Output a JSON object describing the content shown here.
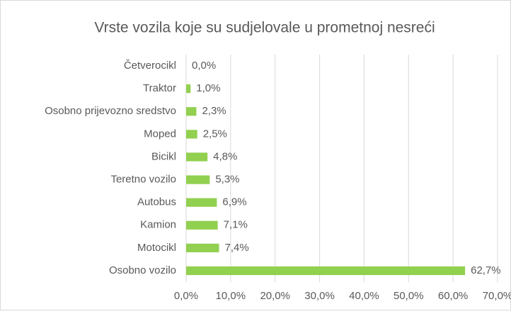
{
  "chart_data": {
    "type": "bar",
    "orientation": "horizontal",
    "title": "Vrste vozila koje su sudjelovale u prometnoj nesreći",
    "categories": [
      "Četverocikl",
      "Traktor",
      "Osobno prijevozno sredstvo",
      "Moped",
      "Bicikl",
      "Teretno vozilo",
      "Autobus",
      "Kamion",
      "Motocikl",
      "Osobno vozilo"
    ],
    "values": [
      0.0,
      1.0,
      2.3,
      2.5,
      4.8,
      5.3,
      6.9,
      7.1,
      7.4,
      62.7
    ],
    "value_labels": [
      "0,0%",
      "1,0%",
      "2,3%",
      "2,5%",
      "4,8%",
      "5,3%",
      "6,9%",
      "7,1%",
      "7,4%",
      "62,7%"
    ],
    "color": "#92d050",
    "xlim": [
      0,
      70
    ],
    "xticks": [
      {
        "value": 0,
        "label": "0,0%"
      },
      {
        "value": 10,
        "label": "10,0%"
      },
      {
        "value": 20,
        "label": "20,0%"
      },
      {
        "value": 30,
        "label": "30,0%"
      },
      {
        "value": 40,
        "label": "40,0%"
      },
      {
        "value": 50,
        "label": "50,0%"
      },
      {
        "value": 60,
        "label": "60,0%"
      },
      {
        "value": 70,
        "label": "70,0%"
      }
    ],
    "grid": true
  }
}
